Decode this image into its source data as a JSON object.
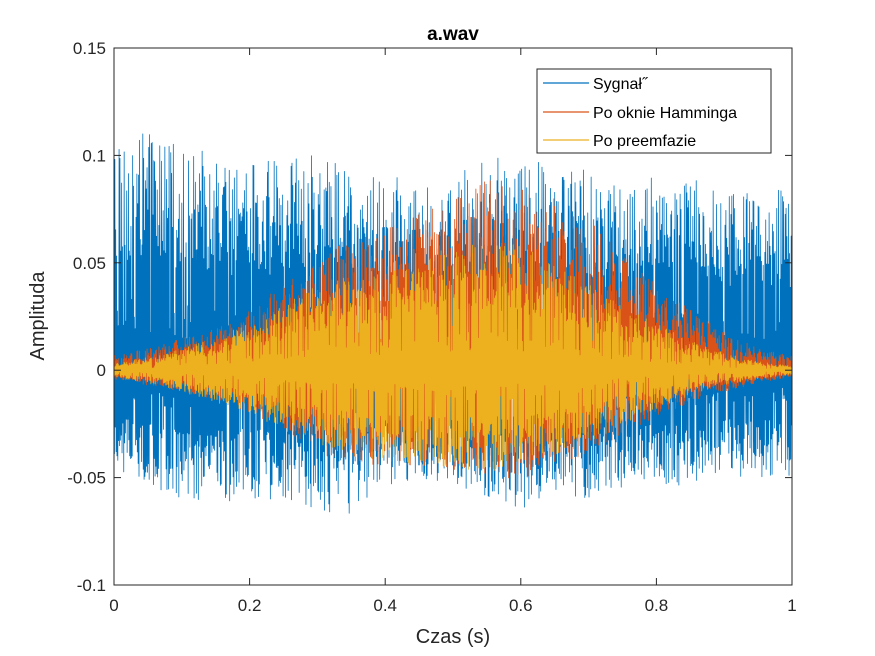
{
  "chart_data": {
    "type": "line",
    "title": "a.wav",
    "xlabel": "Czas (s)",
    "ylabel": "Amplituda",
    "xlim": [
      0,
      1
    ],
    "ylim": [
      -0.1,
      0.15
    ],
    "xticks": [
      0,
      0.2,
      0.4,
      0.6,
      0.8,
      1
    ],
    "xtick_labels": [
      "0",
      "0.2",
      "0.4",
      "0.6",
      "0.8",
      "1"
    ],
    "yticks": [
      -0.1,
      -0.05,
      0,
      0.05,
      0.1,
      0.15
    ],
    "ytick_labels": [
      "-0.1",
      "-0.05",
      "0",
      "0.05",
      "0.1",
      "0.15"
    ],
    "grid": false,
    "legend_position": "top-right",
    "series": [
      {
        "name": "Sygnał˝",
        "color": "#0072BD",
        "envelope_t": [
          0,
          0.05,
          0.1,
          0.15,
          0.2,
          0.25,
          0.3,
          0.35,
          0.4,
          0.45,
          0.5,
          0.55,
          0.6,
          0.65,
          0.7,
          0.75,
          0.8,
          0.85,
          0.9,
          0.95,
          1
        ],
        "envelope_max": [
          0.11,
          0.11,
          0.105,
          0.1,
          0.095,
          0.1,
          0.1,
          0.095,
          0.09,
          0.09,
          0.09,
          0.1,
          0.1,
          0.095,
          0.095,
          0.09,
          0.09,
          0.09,
          0.085,
          0.085,
          0.085
        ],
        "envelope_min": [
          -0.045,
          -0.055,
          -0.06,
          -0.062,
          -0.06,
          -0.06,
          -0.065,
          -0.068,
          -0.055,
          -0.05,
          -0.055,
          -0.06,
          -0.065,
          -0.06,
          -0.06,
          -0.055,
          -0.055,
          -0.055,
          -0.05,
          -0.05,
          -0.05
        ]
      },
      {
        "name": "Po oknie Hamminga",
        "color": "#D95319",
        "envelope_t": [
          0,
          0.05,
          0.1,
          0.15,
          0.2,
          0.25,
          0.3,
          0.35,
          0.4,
          0.45,
          0.5,
          0.55,
          0.6,
          0.65,
          0.7,
          0.75,
          0.8,
          0.85,
          0.9,
          0.95,
          1
        ],
        "envelope_max": [
          0.007,
          0.01,
          0.015,
          0.02,
          0.028,
          0.04,
          0.052,
          0.062,
          0.07,
          0.075,
          0.08,
          0.09,
          0.085,
          0.08,
          0.07,
          0.055,
          0.04,
          0.028,
          0.018,
          0.01,
          0.007
        ],
        "envelope_min": [
          -0.004,
          -0.007,
          -0.01,
          -0.014,
          -0.02,
          -0.028,
          -0.038,
          -0.045,
          -0.045,
          -0.045,
          -0.048,
          -0.05,
          -0.052,
          -0.045,
          -0.04,
          -0.03,
          -0.022,
          -0.015,
          -0.01,
          -0.006,
          -0.003
        ]
      },
      {
        "name": "Po preemfazie",
        "color": "#EDB120",
        "envelope_t": [
          0,
          0.05,
          0.1,
          0.15,
          0.2,
          0.25,
          0.3,
          0.35,
          0.4,
          0.45,
          0.5,
          0.55,
          0.6,
          0.65,
          0.7,
          0.75,
          0.8,
          0.85,
          0.9,
          0.95,
          1
        ],
        "envelope_max": [
          0.003,
          0.006,
          0.01,
          0.015,
          0.022,
          0.03,
          0.04,
          0.045,
          0.05,
          0.055,
          0.058,
          0.06,
          0.058,
          0.05,
          0.04,
          0.03,
          0.022,
          0.014,
          0.008,
          0.004,
          0.002
        ],
        "envelope_min": [
          -0.003,
          -0.006,
          -0.01,
          -0.015,
          -0.02,
          -0.028,
          -0.035,
          -0.04,
          -0.042,
          -0.045,
          -0.046,
          -0.048,
          -0.045,
          -0.04,
          -0.035,
          -0.025,
          -0.018,
          -0.012,
          -0.007,
          -0.004,
          -0.002
        ]
      }
    ]
  }
}
